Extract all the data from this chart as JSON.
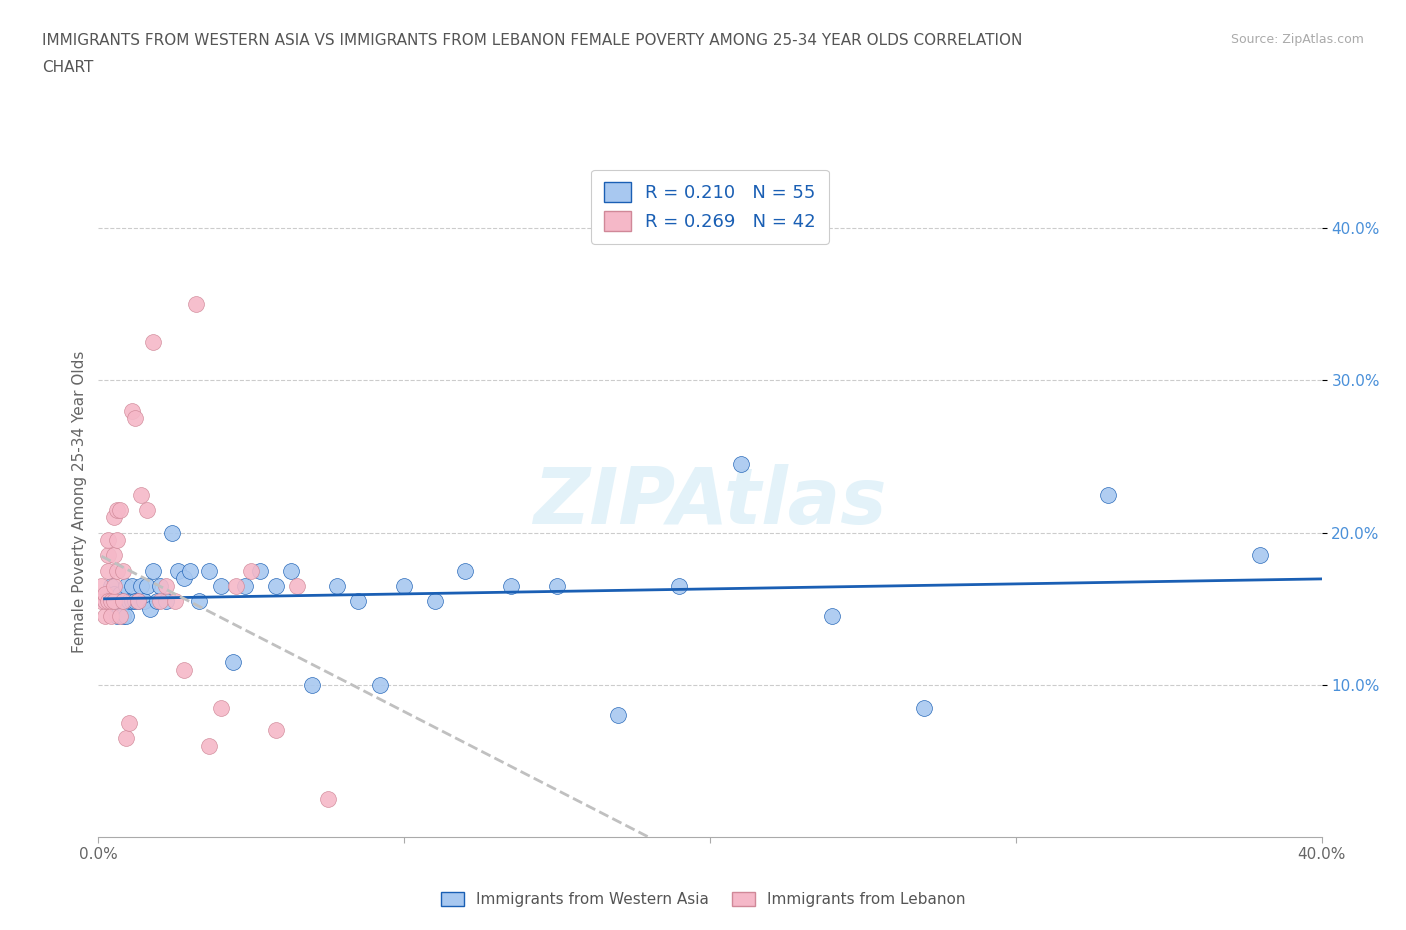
{
  "title_line1": "IMMIGRANTS FROM WESTERN ASIA VS IMMIGRANTS FROM LEBANON FEMALE POVERTY AMONG 25-34 YEAR OLDS CORRELATION",
  "title_line2": "CHART",
  "source": "Source: ZipAtlas.com",
  "ylabel": "Female Poverty Among 25-34 Year Olds",
  "xlim": [
    0.0,
    0.4
  ],
  "ylim": [
    0.0,
    0.44
  ],
  "yticks": [
    0.1,
    0.2,
    0.3,
    0.4
  ],
  "ytick_labels": [
    "10.0%",
    "20.0%",
    "30.0%",
    "40.0%"
  ],
  "xticks": [
    0.0,
    0.1,
    0.2,
    0.3,
    0.4
  ],
  "xtick_labels": [
    "0.0%",
    "",
    "",
    "",
    "40.0%"
  ],
  "color_western": "#a8c8f0",
  "color_lebanon": "#f5b8c8",
  "line_color_western": "#1a5fb4",
  "line_color_lebanon": "#c0c0c0",
  "western_asia_x": [
    0.002,
    0.003,
    0.004,
    0.004,
    0.005,
    0.005,
    0.006,
    0.006,
    0.007,
    0.007,
    0.008,
    0.008,
    0.009,
    0.009,
    0.01,
    0.011,
    0.011,
    0.012,
    0.013,
    0.014,
    0.015,
    0.016,
    0.017,
    0.018,
    0.019,
    0.02,
    0.022,
    0.024,
    0.026,
    0.028,
    0.03,
    0.033,
    0.036,
    0.04,
    0.044,
    0.048,
    0.053,
    0.058,
    0.063,
    0.07,
    0.078,
    0.085,
    0.092,
    0.1,
    0.11,
    0.12,
    0.135,
    0.15,
    0.17,
    0.19,
    0.21,
    0.24,
    0.27,
    0.33,
    0.38
  ],
  "western_asia_y": [
    0.155,
    0.16,
    0.155,
    0.165,
    0.15,
    0.16,
    0.145,
    0.155,
    0.15,
    0.16,
    0.145,
    0.155,
    0.145,
    0.165,
    0.155,
    0.155,
    0.165,
    0.155,
    0.155,
    0.165,
    0.155,
    0.165,
    0.15,
    0.175,
    0.155,
    0.165,
    0.155,
    0.2,
    0.175,
    0.17,
    0.175,
    0.155,
    0.175,
    0.165,
    0.115,
    0.165,
    0.175,
    0.165,
    0.175,
    0.1,
    0.165,
    0.155,
    0.1,
    0.165,
    0.155,
    0.175,
    0.165,
    0.165,
    0.08,
    0.165,
    0.245,
    0.145,
    0.085,
    0.225,
    0.185
  ],
  "lebanon_x": [
    0.001,
    0.001,
    0.002,
    0.002,
    0.002,
    0.003,
    0.003,
    0.003,
    0.003,
    0.004,
    0.004,
    0.005,
    0.005,
    0.005,
    0.005,
    0.006,
    0.006,
    0.006,
    0.007,
    0.007,
    0.008,
    0.008,
    0.009,
    0.01,
    0.011,
    0.012,
    0.013,
    0.014,
    0.016,
    0.018,
    0.02,
    0.022,
    0.025,
    0.028,
    0.032,
    0.036,
    0.04,
    0.045,
    0.05,
    0.058,
    0.065,
    0.075
  ],
  "lebanon_y": [
    0.155,
    0.165,
    0.145,
    0.155,
    0.16,
    0.155,
    0.175,
    0.185,
    0.195,
    0.145,
    0.155,
    0.155,
    0.165,
    0.185,
    0.21,
    0.175,
    0.195,
    0.215,
    0.145,
    0.215,
    0.155,
    0.175,
    0.065,
    0.075,
    0.28,
    0.275,
    0.155,
    0.225,
    0.215,
    0.325,
    0.155,
    0.165,
    0.155,
    0.11,
    0.35,
    0.06,
    0.085,
    0.165,
    0.175,
    0.07,
    0.165,
    0.025
  ]
}
